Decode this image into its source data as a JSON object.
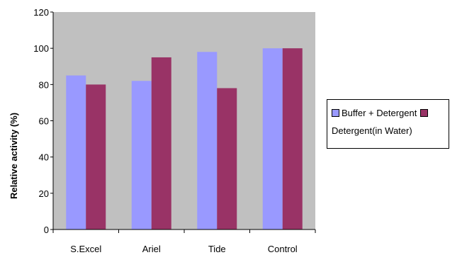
{
  "chart_data": {
    "type": "bar",
    "ylabel": "Relative activity (%)",
    "categories": [
      "S.Excel",
      "Ariel",
      "Tide",
      "Control"
    ],
    "ylim": [
      0,
      120
    ],
    "yticks": [
      "0",
      "20",
      "40",
      "60",
      "80",
      "100",
      "120"
    ],
    "grid": false,
    "legend_position": "right",
    "plot_background": "#c0c0c0",
    "series": [
      {
        "name": "Buffer + Detergent",
        "color": "#9999ff",
        "values": [
          85,
          82,
          98,
          100
        ]
      },
      {
        "name": "Detergent(in Water)",
        "color": "#993366",
        "values": [
          80,
          95,
          78,
          100
        ]
      }
    ]
  }
}
